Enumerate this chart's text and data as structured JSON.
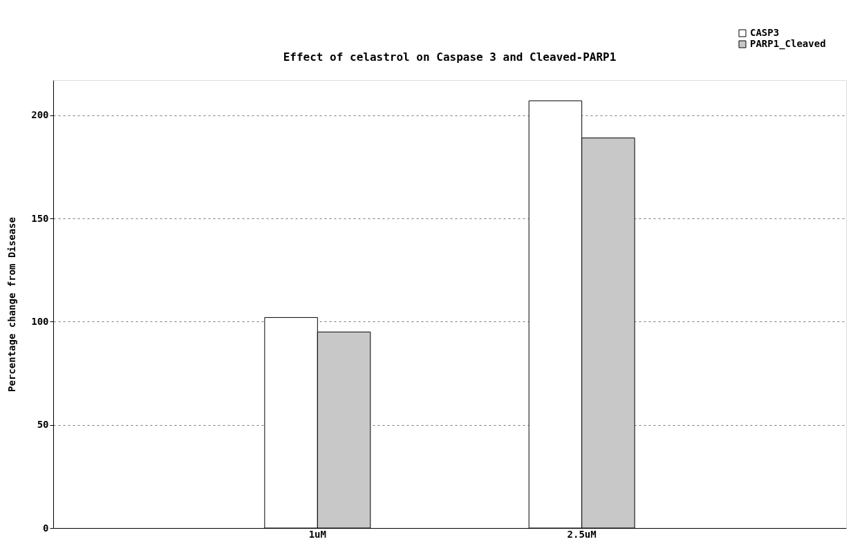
{
  "chart_data": {
    "type": "bar",
    "title": "Effect of celastrol on Caspase 3 and Cleaved-PARP1",
    "ylabel": "Percentage change from Disease",
    "categories": [
      "1uM",
      "2.5uM"
    ],
    "series": [
      {
        "name": "CASP3",
        "color": "#ffffff",
        "values": [
          102,
          207
        ]
      },
      {
        "name": "PARP1_Cleaved",
        "color": "#c8c8c8",
        "values": [
          95,
          189
        ]
      }
    ],
    "ylim": [
      0,
      217
    ],
    "yticks": [
      0,
      50,
      100,
      150,
      200
    ],
    "grid": "y",
    "legend": "top right"
  }
}
